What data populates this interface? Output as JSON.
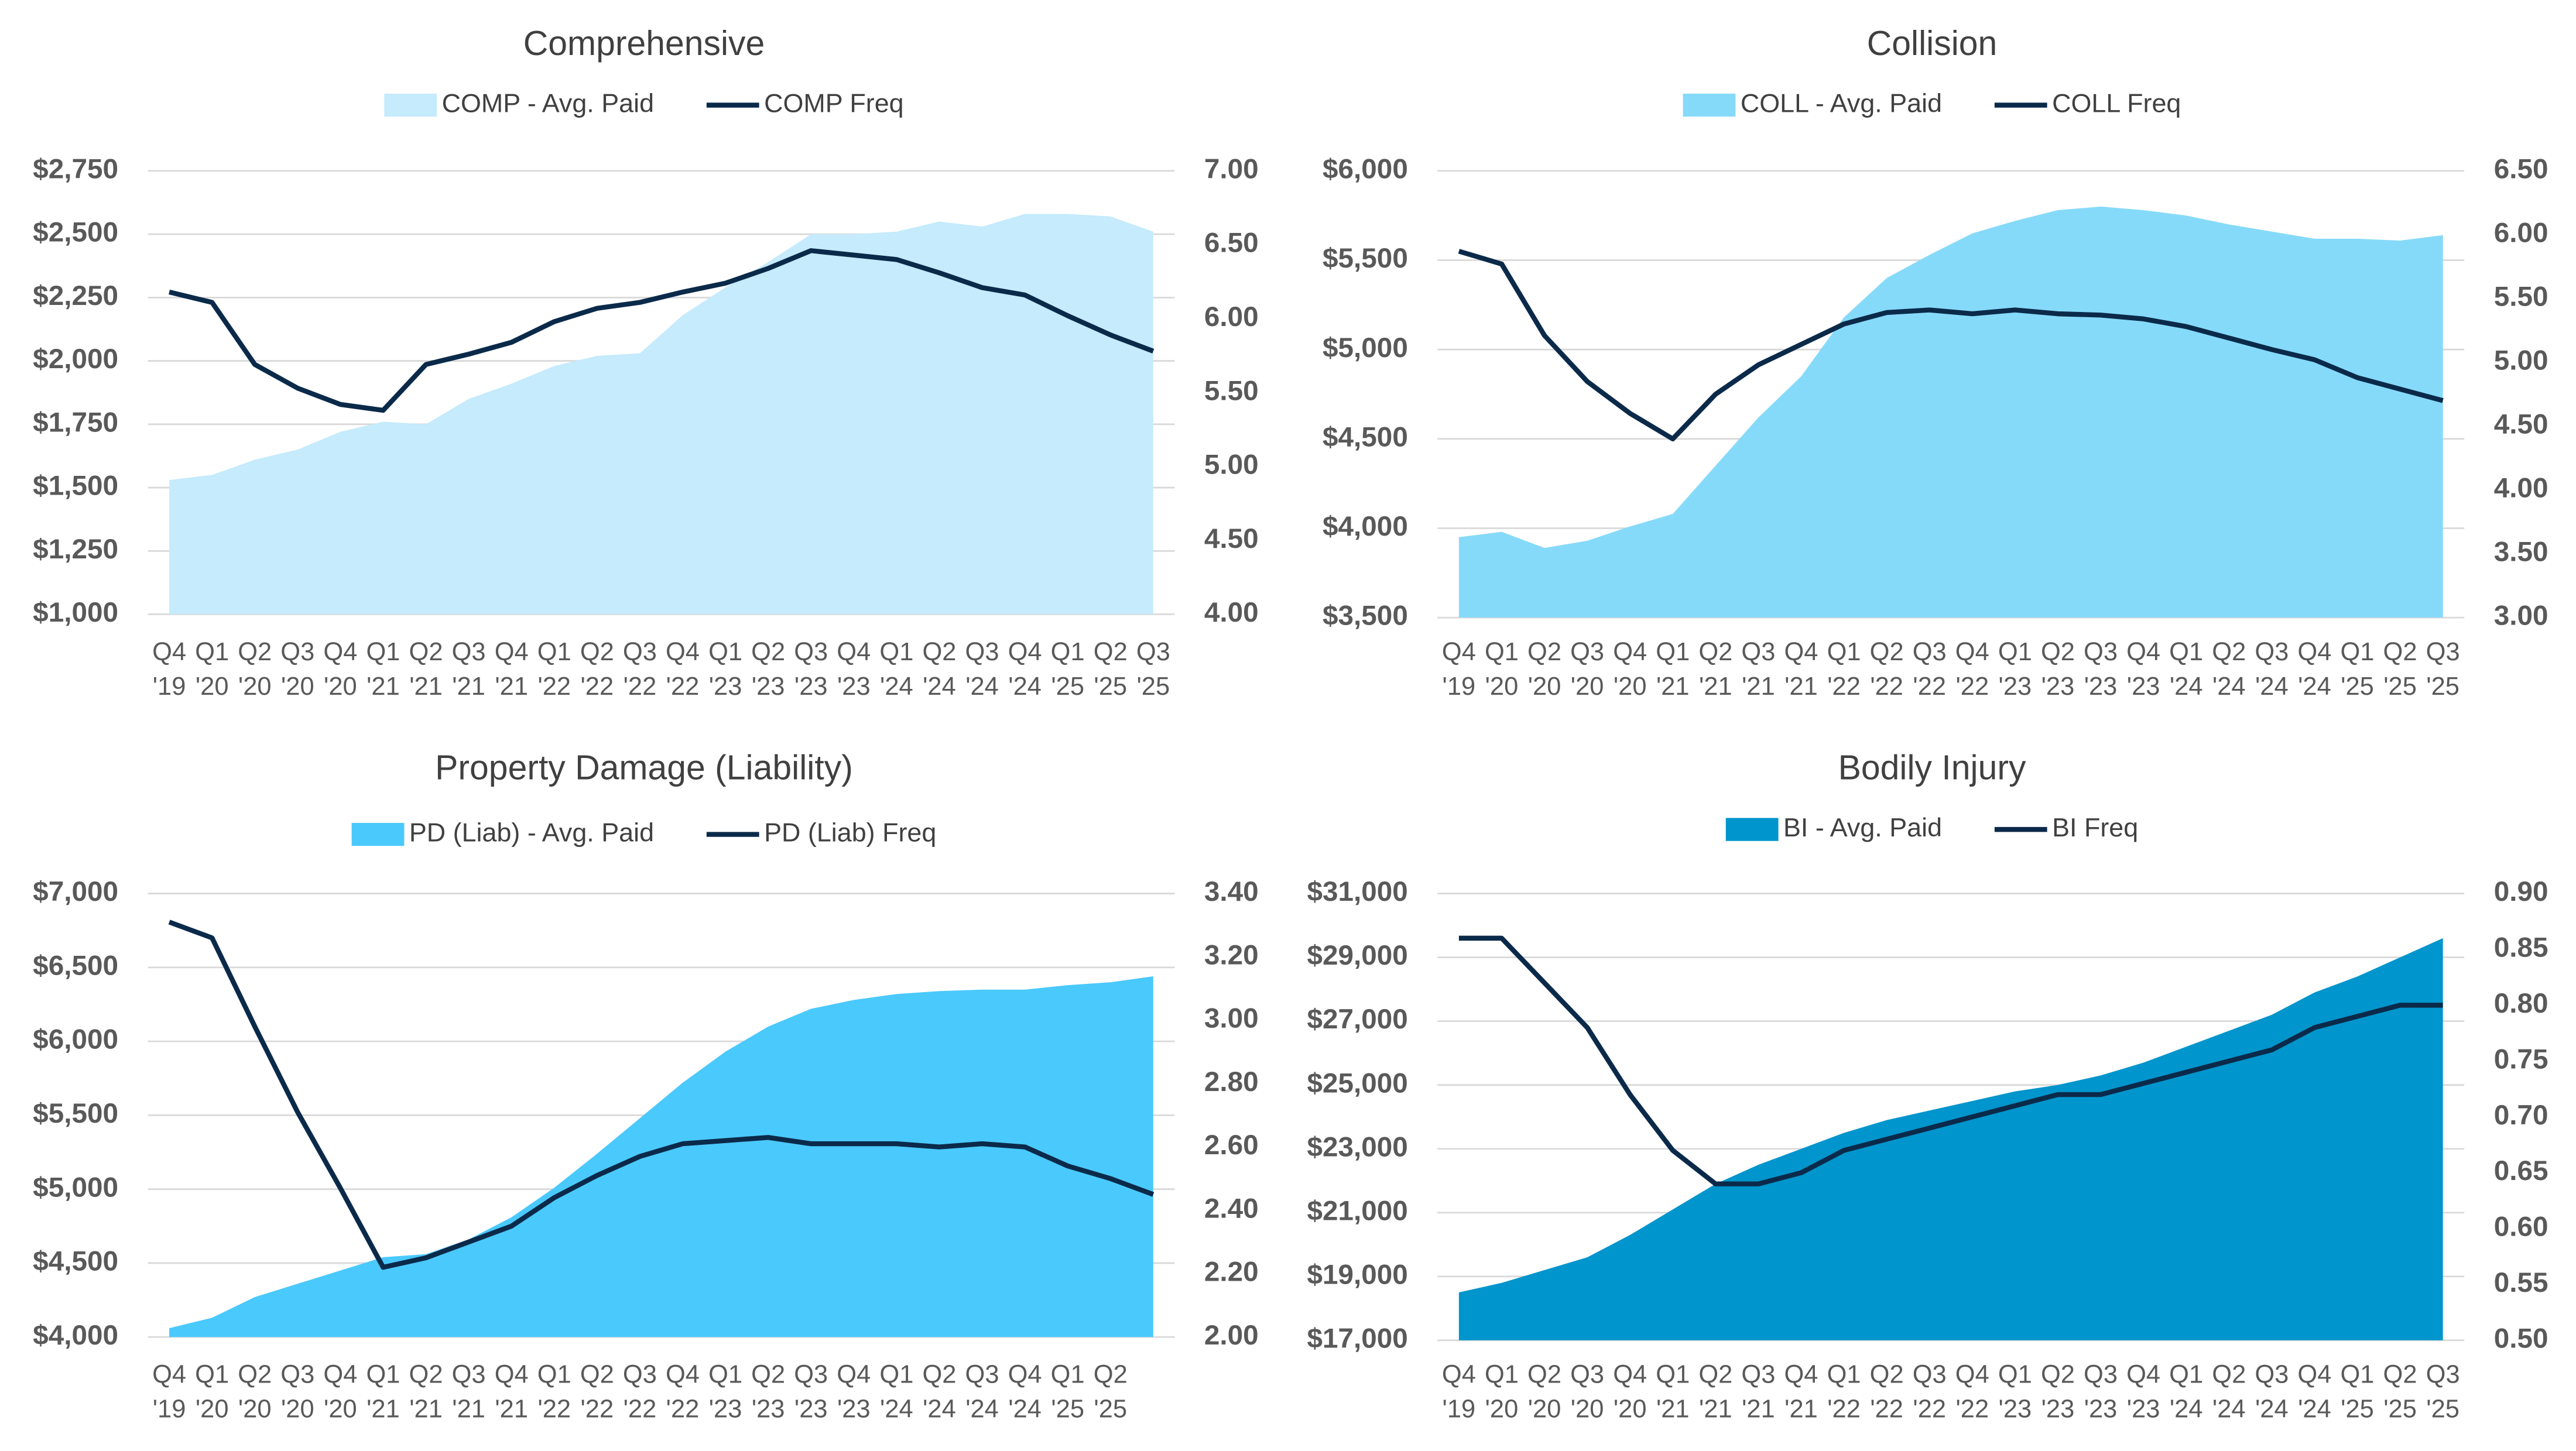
{
  "chart_data": [
    {
      "type": "combo",
      "title": "Comprehensive",
      "categories": [
        "Q4 '19",
        "Q1 '20",
        "Q2 '20",
        "Q3 '20",
        "Q4 '20",
        "Q1 '21",
        "Q2 '21",
        "Q3 '21",
        "Q4 '21",
        "Q1 '22",
        "Q2 '22",
        "Q3 '22",
        "Q4 '22",
        "Q1 '23",
        "Q2 '23",
        "Q3 '23",
        "Q4 '23",
        "Q1 '24",
        "Q2 '24",
        "Q3 '24",
        "Q4 '24",
        "Q1 '25",
        "Q2 '25",
        "Q3 '25"
      ],
      "series": [
        {
          "name": "COMP - Avg. Paid",
          "type": "area",
          "color": "#c5ebfc",
          "values": [
            1530,
            1550,
            1610,
            1650,
            1720,
            1760,
            1750,
            1850,
            1910,
            1980,
            2020,
            2030,
            2180,
            2290,
            2390,
            2500,
            2500,
            2510,
            2550,
            2530,
            2580,
            2580,
            2570,
            2510
          ]
        },
        {
          "name": "COMP Freq",
          "type": "line",
          "axis": "y2",
          "color": "#0b2a4a",
          "values": [
            6.18,
            6.11,
            5.69,
            5.53,
            5.42,
            5.38,
            5.69,
            5.76,
            5.84,
            5.98,
            6.07,
            6.11,
            6.18,
            6.24,
            6.34,
            6.46,
            6.43,
            6.4,
            6.31,
            6.21,
            6.16,
            6.02,
            5.89,
            5.78
          ]
        }
      ],
      "ylim": [
        1000,
        2750
      ],
      "yticks": [
        {
          "value": 1000,
          "label": "$1,000"
        },
        {
          "value": 1250,
          "label": "$1,250"
        },
        {
          "value": 1500,
          "label": "$1,500"
        },
        {
          "value": 1750,
          "label": "$1,750"
        },
        {
          "value": 2000,
          "label": "$2,000"
        },
        {
          "value": 2250,
          "label": "$2,250"
        },
        {
          "value": 2500,
          "label": "$2,500"
        },
        {
          "value": 2750,
          "label": "$2,750"
        }
      ],
      "y2lim": [
        4,
        7
      ],
      "y2ticks": [
        {
          "value": 4,
          "label": "4.00"
        },
        {
          "value": 4.5,
          "label": "4.50"
        },
        {
          "value": 5,
          "label": "5.00"
        },
        {
          "value": 5.5,
          "label": "5.50"
        },
        {
          "value": 6,
          "label": "6.00"
        },
        {
          "value": 6.5,
          "label": "6.50"
        },
        {
          "value": 7,
          "label": "7.00"
        }
      ],
      "grid": true,
      "legend": "top"
    },
    {
      "type": "combo",
      "title": "Collision",
      "categories": [
        "Q4 '19",
        "Q1 '20",
        "Q2 '20",
        "Q3 '20",
        "Q4 '20",
        "Q1 '21",
        "Q2 '21",
        "Q3 '21",
        "Q4 '21",
        "Q1 '22",
        "Q2 '22",
        "Q3 '22",
        "Q4 '22",
        "Q1 '23",
        "Q2 '23",
        "Q3 '23",
        "Q4 '23",
        "Q1 '24",
        "Q2 '24",
        "Q3 '24",
        "Q4 '24",
        "Q1 '25",
        "Q2 '25",
        "Q3 '25"
      ],
      "series": [
        {
          "name": "COLL - Avg. Paid",
          "type": "area",
          "color": "#86daf9",
          "values": [
            3950,
            3980,
            3890,
            3930,
            4010,
            4080,
            4350,
            4620,
            4850,
            5180,
            5400,
            5530,
            5650,
            5720,
            5780,
            5800,
            5780,
            5750,
            5700,
            5660,
            5620,
            5620,
            5610,
            5640
          ]
        },
        {
          "name": "COLL Freq",
          "type": "line",
          "axis": "y2",
          "color": "#0b2a4a",
          "values": [
            5.87,
            5.77,
            5.21,
            4.85,
            4.6,
            4.4,
            4.75,
            4.98,
            5.14,
            5.3,
            5.39,
            5.41,
            5.38,
            5.41,
            5.38,
            5.37,
            5.34,
            5.28,
            5.19,
            5.1,
            5.02,
            4.88,
            4.79,
            4.7
          ]
        }
      ],
      "ylim": [
        3500,
        6000
      ],
      "yticks": [
        {
          "value": 3500,
          "label": "$3,500"
        },
        {
          "value": 4000,
          "label": "$4,000"
        },
        {
          "value": 4500,
          "label": "$4,500"
        },
        {
          "value": 5000,
          "label": "$5,000"
        },
        {
          "value": 5500,
          "label": "$5,500"
        },
        {
          "value": 6000,
          "label": "$6,000"
        }
      ],
      "y2lim": [
        3,
        6.5
      ],
      "y2ticks": [
        {
          "value": 3,
          "label": "3.00"
        },
        {
          "value": 3.5,
          "label": "3.50"
        },
        {
          "value": 4,
          "label": "4.00"
        },
        {
          "value": 4.5,
          "label": "4.50"
        },
        {
          "value": 5,
          "label": "5.00"
        },
        {
          "value": 5.5,
          "label": "5.50"
        },
        {
          "value": 6,
          "label": "6.00"
        },
        {
          "value": 6.5,
          "label": "6.50"
        }
      ],
      "grid": true,
      "legend": "top"
    },
    {
      "type": "combo",
      "title": "Property Damage (Liability)",
      "categories": [
        "Q4 '19",
        "Q1 '20",
        "Q2 '20",
        "Q3 '20",
        "Q4 '20",
        "Q1 '21",
        "Q2 '21",
        "Q3 '21",
        "Q4 '21",
        "Q1 '22",
        "Q2 '22",
        "Q3 '22",
        "Q4 '22",
        "Q1 '23",
        "Q2 '23",
        "Q3 '23",
        "Q4 '23",
        "Q1 '24",
        "Q2 '24",
        "Q3 '24",
        "Q4 '24",
        "Q1 '25",
        "Q2 '25",
        null
      ],
      "series": [
        {
          "name": "PD (Liab) - Avg. Paid",
          "type": "area",
          "color": "#4ac9fc",
          "values": [
            4060,
            4130,
            4270,
            4360,
            4450,
            4540,
            4560,
            4660,
            4810,
            5010,
            5240,
            5480,
            5720,
            5930,
            6100,
            6220,
            6280,
            6320,
            6340,
            6350,
            6350,
            6380,
            6400,
            6440
          ]
        },
        {
          "name": "PD (Liab) Freq",
          "type": "line",
          "axis": "y2",
          "color": "#0b2a4a",
          "values": [
            3.31,
            3.26,
            2.98,
            2.71,
            2.47,
            2.22,
            2.25,
            2.3,
            2.35,
            2.44,
            2.51,
            2.57,
            2.61,
            2.62,
            2.63,
            2.61,
            2.61,
            2.61,
            2.6,
            2.61,
            2.6,
            2.54,
            2.5,
            2.45
          ]
        }
      ],
      "ylim": [
        4000,
        7000
      ],
      "yticks": [
        {
          "value": 4000,
          "label": "$4,000"
        },
        {
          "value": 4500,
          "label": "$4,500"
        },
        {
          "value": 5000,
          "label": "$5,000"
        },
        {
          "value": 5500,
          "label": "$5,500"
        },
        {
          "value": 6000,
          "label": "$6,000"
        },
        {
          "value": 6500,
          "label": "$6,500"
        },
        {
          "value": 7000,
          "label": "$7,000"
        }
      ],
      "y2lim": [
        2,
        3.4
      ],
      "y2ticks": [
        {
          "value": 2,
          "label": "2.00"
        },
        {
          "value": 2.2,
          "label": "2.20"
        },
        {
          "value": 2.4,
          "label": "2.40"
        },
        {
          "value": 2.6,
          "label": "2.60"
        },
        {
          "value": 2.8,
          "label": "2.80"
        },
        {
          "value": 3,
          "label": "3.00"
        },
        {
          "value": 3.2,
          "label": "3.20"
        },
        {
          "value": 3.4,
          "label": "3.40"
        }
      ],
      "grid": true,
      "legend": "top"
    },
    {
      "type": "combo",
      "title": "Bodily Injury",
      "categories": [
        "Q4 '19",
        "Q1 '20",
        "Q2 '20",
        "Q3 '20",
        "Q4 '20",
        "Q1 '21",
        "Q2 '21",
        "Q3 '21",
        "Q4 '21",
        "Q1 '22",
        "Q2 '22",
        "Q3 '22",
        "Q4 '22",
        "Q1 '23",
        "Q2 '23",
        "Q3 '23",
        "Q4 '23",
        "Q1 '24",
        "Q2 '24",
        "Q3 '24",
        "Q4 '24",
        "Q1 '25",
        "Q2 '25",
        "Q3 '25"
      ],
      "series": [
        {
          "name": "BI - Avg. Paid",
          "type": "area",
          "color": "#0095cc",
          "values": [
            18500,
            18800,
            19200,
            19600,
            20300,
            21100,
            21900,
            22500,
            23000,
            23500,
            23900,
            24200,
            24500,
            24800,
            25000,
            25300,
            25700,
            26200,
            26700,
            27200,
            27900,
            28400,
            29000,
            29600
          ]
        },
        {
          "name": "BI Freq",
          "type": "line",
          "axis": "y2",
          "color": "#0b2a4a",
          "values": [
            0.86,
            0.86,
            0.82,
            0.78,
            0.72,
            0.67,
            0.64,
            0.64,
            0.65,
            0.67,
            0.68,
            0.69,
            0.7,
            0.71,
            0.72,
            0.72,
            0.73,
            0.74,
            0.75,
            0.76,
            0.78,
            0.79,
            0.8,
            0.8
          ]
        }
      ],
      "ylim": [
        17000,
        31000
      ],
      "yticks": [
        {
          "value": 17000,
          "label": "$17,000"
        },
        {
          "value": 19000,
          "label": "$19,000"
        },
        {
          "value": 21000,
          "label": "$21,000"
        },
        {
          "value": 23000,
          "label": "$23,000"
        },
        {
          "value": 25000,
          "label": "$25,000"
        },
        {
          "value": 27000,
          "label": "$27,000"
        },
        {
          "value": 29000,
          "label": "$29,000"
        },
        {
          "value": 31000,
          "label": "$31,000"
        }
      ],
      "y2lim": [
        0.5,
        0.9
      ],
      "y2ticks": [
        {
          "value": 0.5,
          "label": "0.50"
        },
        0.55,
        {
          "value": 0.6,
          "label": "0.60"
        },
        0.65,
        {
          "value": 0.7,
          "label": "0.70"
        },
        0.75,
        {
          "value": 0.8,
          "label": "0.80"
        },
        0.85,
        {
          "value": 0.9,
          "label": "0.90"
        }
      ],
      "grid": true,
      "legend": "top"
    }
  ]
}
